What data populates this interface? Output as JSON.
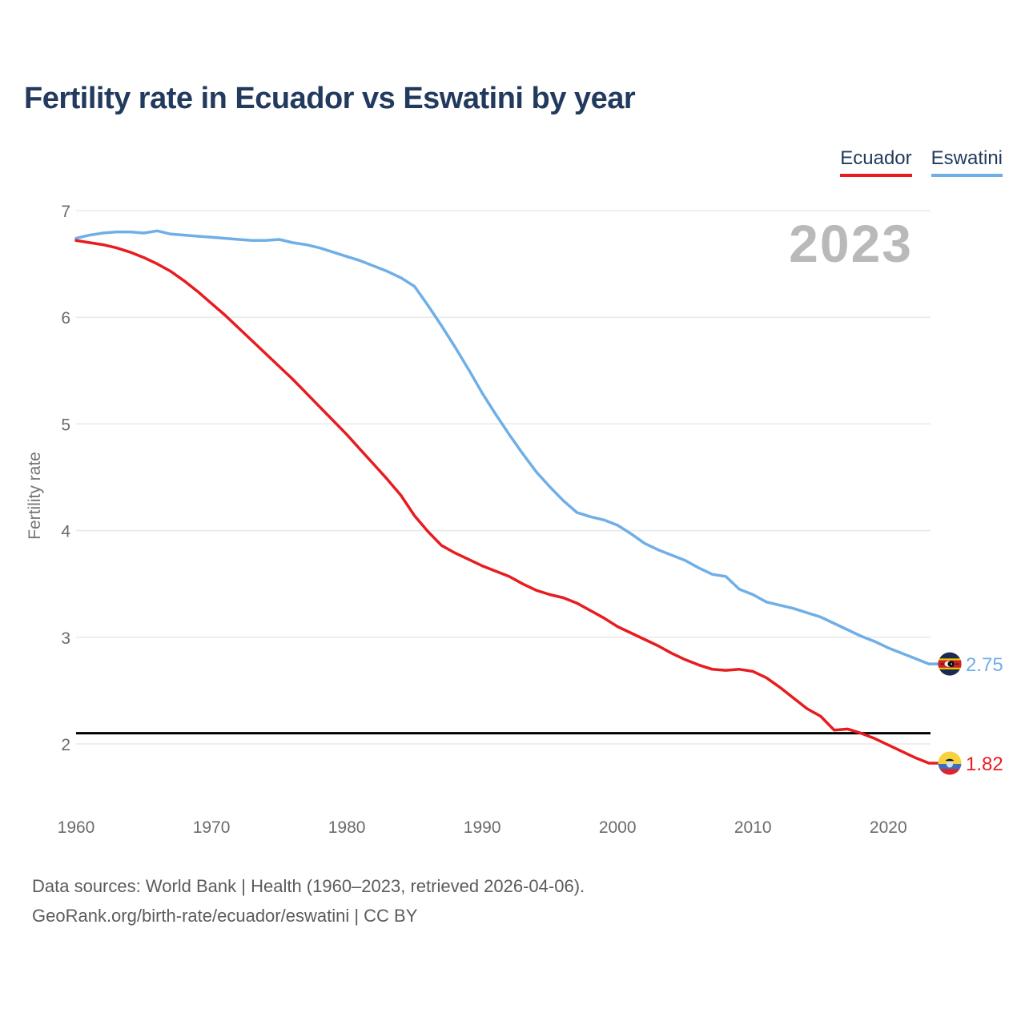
{
  "title": "Fertility rate in Ecuador vs Eswatini by year",
  "legend": [
    {
      "label": "Ecuador",
      "color": "#e81c1f"
    },
    {
      "label": "Eswatini",
      "color": "#6fafe6"
    }
  ],
  "watermark": "2023",
  "y_axis": {
    "label": "Fertility rate",
    "ticks": [
      7,
      6,
      5,
      4,
      3,
      2
    ]
  },
  "x_axis": {
    "ticks": [
      1960,
      1970,
      1980,
      1990,
      2000,
      2010,
      2020
    ]
  },
  "reference_line": {
    "value": 2.1,
    "color": "#000000"
  },
  "end_labels": [
    {
      "series": "Eswatini",
      "value": "2.75",
      "flag": "eswatini-flag"
    },
    {
      "series": "Ecuador",
      "value": "1.82",
      "flag": "ecuador-flag"
    }
  ],
  "source": {
    "line1": "Data sources: World Bank | Health (1960–2023, retrieved 2026-04-06).",
    "line2": "GeoRank.org/birth-rate/ecuador/eswatini | CC BY"
  },
  "chart_data": {
    "type": "line",
    "title": "Fertility rate in Ecuador vs Eswatini by year",
    "xlabel": "",
    "ylabel": "Fertility rate",
    "xlim": [
      1960,
      2023
    ],
    "ylim": [
      1.7,
      7.1
    ],
    "grid": true,
    "legend_position": "top-right",
    "annotations": {
      "replacement_rate_line": 2.1,
      "watermark_year": "2023"
    },
    "years": [
      1960,
      1961,
      1962,
      1963,
      1964,
      1965,
      1966,
      1967,
      1968,
      1969,
      1970,
      1971,
      1972,
      1973,
      1974,
      1975,
      1976,
      1977,
      1978,
      1979,
      1980,
      1981,
      1982,
      1983,
      1984,
      1985,
      1986,
      1987,
      1988,
      1989,
      1990,
      1991,
      1992,
      1993,
      1994,
      1995,
      1996,
      1997,
      1998,
      1999,
      2000,
      2001,
      2002,
      2003,
      2004,
      2005,
      2006,
      2007,
      2008,
      2009,
      2010,
      2011,
      2012,
      2013,
      2014,
      2015,
      2016,
      2017,
      2018,
      2019,
      2020,
      2021,
      2022,
      2023
    ],
    "series": [
      {
        "name": "Ecuador",
        "color": "#e81c1f",
        "end_value": 1.82,
        "values": [
          6.72,
          6.7,
          6.68,
          6.65,
          6.61,
          6.56,
          6.5,
          6.43,
          6.34,
          6.24,
          6.13,
          6.02,
          5.9,
          5.78,
          5.66,
          5.54,
          5.42,
          5.29,
          5.16,
          5.03,
          4.9,
          4.76,
          4.62,
          4.48,
          4.33,
          4.14,
          3.99,
          3.86,
          3.79,
          3.73,
          3.67,
          3.62,
          3.57,
          3.5,
          3.44,
          3.4,
          3.37,
          3.32,
          3.25,
          3.18,
          3.1,
          3.04,
          2.98,
          2.92,
          2.85,
          2.79,
          2.74,
          2.7,
          2.69,
          2.7,
          2.68,
          2.62,
          2.53,
          2.43,
          2.33,
          2.26,
          2.13,
          2.14,
          2.1,
          2.05,
          1.99,
          1.93,
          1.87,
          1.82
        ]
      },
      {
        "name": "Eswatini",
        "color": "#6fafe6",
        "end_value": 2.75,
        "values": [
          6.74,
          6.77,
          6.79,
          6.8,
          6.8,
          6.79,
          6.81,
          6.78,
          6.77,
          6.76,
          6.75,
          6.74,
          6.73,
          6.72,
          6.72,
          6.73,
          6.7,
          6.68,
          6.65,
          6.61,
          6.57,
          6.53,
          6.48,
          6.43,
          6.37,
          6.29,
          6.11,
          5.92,
          5.72,
          5.51,
          5.29,
          5.09,
          4.9,
          4.72,
          4.55,
          4.41,
          4.28,
          4.17,
          4.13,
          4.1,
          4.05,
          3.97,
          3.88,
          3.82,
          3.77,
          3.72,
          3.65,
          3.59,
          3.57,
          3.45,
          3.4,
          3.33,
          3.3,
          3.27,
          3.23,
          3.19,
          3.13,
          3.07,
          3.01,
          2.96,
          2.9,
          2.85,
          2.8,
          2.75
        ]
      }
    ]
  }
}
